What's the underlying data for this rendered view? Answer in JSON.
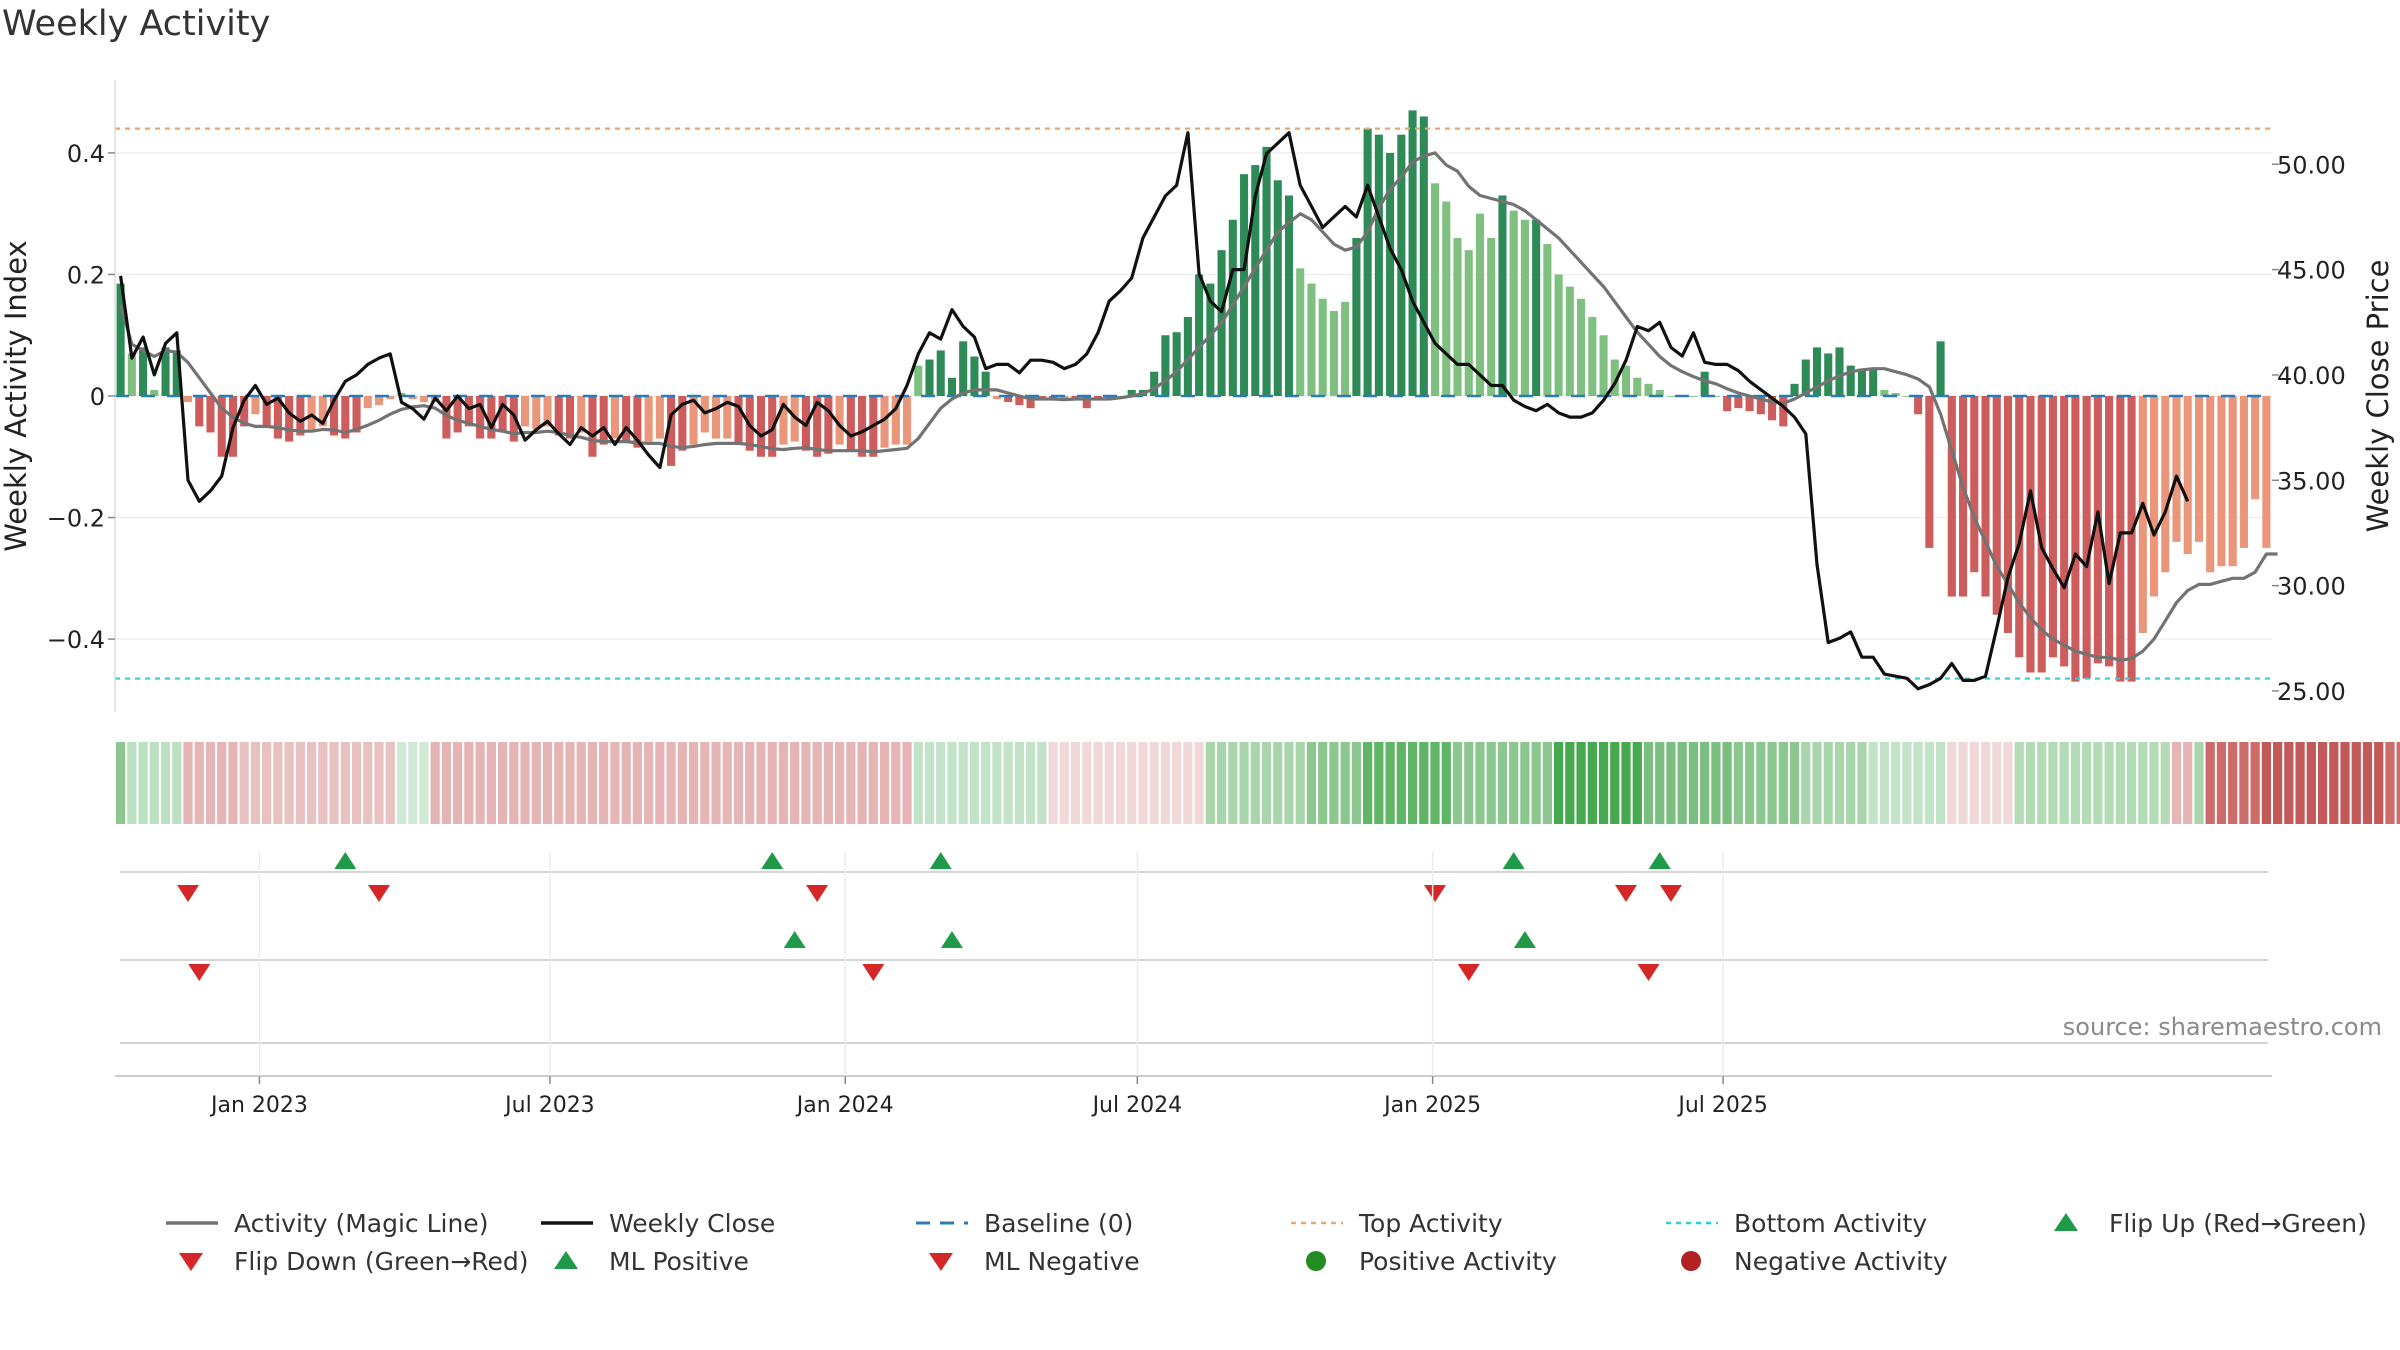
{
  "title": "Weekly Activity",
  "source": "source: sharemaestro.com",
  "colors": {
    "magic_line": "#737373",
    "close": "#111111",
    "baseline": "#2b7bb9",
    "top": "#e6a96b",
    "bottom": "#33ccd6",
    "pos_dark": "#2e8b57",
    "pos_light": "#7fbf7f",
    "neg_dark": "#cd5c5c",
    "neg_light": "#e9967a",
    "marker_up": "#1f9a48",
    "marker_down": "#d62728",
    "pos_dot": "#228b22",
    "neg_dot": "#b22222"
  },
  "chart_data": {
    "type": "bar",
    "start_date": "2022-10-03",
    "ylabel": "Weekly Activity Index",
    "y2label": "Weekly Close Price",
    "ylim": [
      -0.52,
      0.52
    ],
    "y2lim": [
      24.0,
      54.0
    ],
    "yticks": [
      -0.4,
      -0.2,
      0.0,
      0.2,
      0.4
    ],
    "ytick_labels": [
      "−0.4",
      "−0.2",
      "0",
      "0.2",
      "0.4"
    ],
    "y2ticks": [
      25.0,
      30.0,
      35.0,
      40.0,
      45.0,
      50.0
    ],
    "y2tick_labels": [
      "25.00",
      "30.00",
      "35.00",
      "40.00",
      "45.00",
      "50.00"
    ],
    "xtick_dates": [
      "2023-01-01",
      "2023-07-01",
      "2024-01-01",
      "2024-07-01",
      "2025-01-01",
      "2025-07-01"
    ],
    "xtick_labels": [
      "Jan 2023",
      "Jul 2023",
      "Jan 2024",
      "Jul 2024",
      "Jan 2025",
      "Jul 2025"
    ],
    "top_activity": 0.44,
    "bottom_activity": -0.465,
    "activity": [
      0.185,
      0.07,
      0.08,
      0.01,
      0.08,
      0.075,
      -0.01,
      -0.05,
      -0.06,
      -0.1,
      -0.1,
      -0.05,
      -0.03,
      -0.05,
      -0.07,
      -0.075,
      -0.065,
      -0.055,
      -0.05,
      -0.065,
      -0.07,
      -0.06,
      -0.02,
      -0.015,
      -0.005,
      0.005,
      -0.005,
      -0.01,
      -0.01,
      -0.07,
      -0.06,
      -0.05,
      -0.07,
      -0.07,
      -0.06,
      -0.075,
      -0.05,
      -0.055,
      -0.05,
      -0.065,
      -0.07,
      -0.06,
      -0.1,
      -0.08,
      -0.07,
      -0.075,
      -0.085,
      -0.075,
      -0.07,
      -0.115,
      -0.09,
      -0.08,
      -0.06,
      -0.07,
      -0.07,
      -0.08,
      -0.09,
      -0.1,
      -0.1,
      -0.08,
      -0.075,
      -0.09,
      -0.1,
      -0.095,
      -0.08,
      -0.09,
      -0.1,
      -0.1,
      -0.085,
      -0.08,
      -0.08,
      0.05,
      0.06,
      0.075,
      0.03,
      0.09,
      0.065,
      0.04,
      -0.005,
      -0.01,
      -0.015,
      -0.02,
      -0.005,
      -0.005,
      -0.005,
      -0.005,
      -0.02,
      -0.005,
      -0.005,
      0.0,
      0.01,
      0.01,
      0.04,
      0.1,
      0.105,
      0.13,
      0.2,
      0.185,
      0.24,
      0.29,
      0.365,
      0.38,
      0.41,
      0.355,
      0.33,
      0.21,
      0.185,
      0.16,
      0.14,
      0.155,
      0.26,
      0.44,
      0.43,
      0.4,
      0.43,
      0.47,
      0.46,
      0.35,
      0.32,
      0.26,
      0.24,
      0.3,
      0.26,
      0.33,
      0.305,
      0.29,
      0.29,
      0.25,
      0.2,
      0.18,
      0.16,
      0.13,
      0.1,
      0.06,
      0.05,
      0.03,
      0.02,
      0.01,
      0.0,
      0.0,
      0.0,
      0.04,
      0.0,
      -0.025,
      -0.02,
      -0.025,
      -0.03,
      -0.04,
      -0.05,
      0.02,
      0.06,
      0.08,
      0.07,
      0.08,
      0.05,
      0.045,
      0.045,
      0.01,
      0.005,
      0.0,
      -0.03,
      -0.25,
      0.09,
      -0.33,
      -0.33,
      -0.29,
      -0.33,
      -0.36,
      -0.39,
      -0.43,
      -0.455,
      -0.455,
      -0.43,
      -0.445,
      -0.47,
      -0.465,
      -0.44,
      -0.445,
      -0.47,
      -0.47,
      -0.39,
      -0.33,
      -0.29,
      -0.24,
      -0.26,
      -0.24,
      -0.29,
      -0.28,
      -0.28,
      -0.25,
      -0.17,
      -0.25
    ],
    "magic_line": [
      0.15,
      0.085,
      0.075,
      0.065,
      0.075,
      0.072,
      0.055,
      0.03,
      0.005,
      -0.02,
      -0.035,
      -0.045,
      -0.05,
      -0.05,
      -0.052,
      -0.056,
      -0.058,
      -0.058,
      -0.055,
      -0.056,
      -0.06,
      -0.055,
      -0.048,
      -0.04,
      -0.03,
      -0.022,
      -0.018,
      -0.016,
      -0.02,
      -0.032,
      -0.04,
      -0.045,
      -0.05,
      -0.055,
      -0.058,
      -0.062,
      -0.06,
      -0.06,
      -0.058,
      -0.06,
      -0.065,
      -0.068,
      -0.073,
      -0.075,
      -0.075,
      -0.075,
      -0.077,
      -0.078,
      -0.078,
      -0.083,
      -0.085,
      -0.083,
      -0.08,
      -0.078,
      -0.078,
      -0.078,
      -0.08,
      -0.083,
      -0.087,
      -0.088,
      -0.086,
      -0.085,
      -0.088,
      -0.09,
      -0.09,
      -0.09,
      -0.09,
      -0.092,
      -0.09,
      -0.088,
      -0.086,
      -0.07,
      -0.045,
      -0.02,
      -0.005,
      0.005,
      0.01,
      0.01,
      0.01,
      0.005,
      0.0,
      -0.005,
      -0.005,
      -0.005,
      -0.006,
      -0.005,
      -0.005,
      -0.005,
      -0.005,
      -0.003,
      0.0,
      0.004,
      0.012,
      0.025,
      0.04,
      0.06,
      0.08,
      0.1,
      0.12,
      0.15,
      0.18,
      0.21,
      0.24,
      0.27,
      0.285,
      0.3,
      0.29,
      0.27,
      0.25,
      0.24,
      0.245,
      0.27,
      0.31,
      0.34,
      0.36,
      0.385,
      0.395,
      0.4,
      0.38,
      0.37,
      0.345,
      0.33,
      0.325,
      0.32,
      0.315,
      0.305,
      0.29,
      0.275,
      0.26,
      0.24,
      0.22,
      0.2,
      0.18,
      0.155,
      0.13,
      0.105,
      0.085,
      0.065,
      0.05,
      0.04,
      0.032,
      0.025,
      0.02,
      0.012,
      0.005,
      0.0,
      -0.005,
      -0.01,
      -0.012,
      -0.005,
      0.005,
      0.015,
      0.025,
      0.033,
      0.04,
      0.043,
      0.045,
      0.045,
      0.04,
      0.035,
      0.028,
      0.015,
      -0.03,
      -0.09,
      -0.15,
      -0.2,
      -0.24,
      -0.28,
      -0.31,
      -0.34,
      -0.365,
      -0.385,
      -0.4,
      -0.41,
      -0.42,
      -0.425,
      -0.43,
      -0.43,
      -0.435,
      -0.432,
      -0.42,
      -0.4,
      -0.37,
      -0.34,
      -0.32,
      -0.31,
      -0.31,
      -0.305,
      -0.3,
      -0.3,
      -0.29,
      -0.26,
      -0.26
    ],
    "close": [
      44.7,
      40.8,
      41.8,
      40,
      41.5,
      42,
      35,
      34,
      34.5,
      35.2,
      37.5,
      38.8,
      39.5,
      38.6,
      38.9,
      38.2,
      37.8,
      38.1,
      37.7,
      38.8,
      39.7,
      40,
      40.5,
      40.8,
      41,
      38.7,
      38.4,
      37.9,
      38.9,
      38.3,
      39,
      38.4,
      38.6,
      37.5,
      38.6,
      38.1,
      36.9,
      37.4,
      37.8,
      37.2,
      36.7,
      37.5,
      37.1,
      37.5,
      36.7,
      37.5,
      36.9,
      36.2,
      35.6,
      38.1,
      38.6,
      38.8,
      38.2,
      38.4,
      38.7,
      38.5,
      37.6,
      37.1,
      37.4,
      38.6,
      38,
      37.6,
      38.7,
      38.3,
      37.6,
      37.1,
      37.3,
      37.6,
      37.9,
      38.4,
      39.5,
      41,
      42,
      41.7,
      43.1,
      42.3,
      41.8,
      40.3,
      40.5,
      40.5,
      40.1,
      40.7,
      40.7,
      40.6,
      40.3,
      40.5,
      41,
      42,
      43.5,
      44,
      44.6,
      46.5,
      47.5,
      48.5,
      49,
      51.5,
      44.8,
      43.5,
      43,
      45,
      45,
      48.5,
      50.5,
      51,
      51.5,
      49,
      48,
      47,
      47.5,
      48,
      47.5,
      49,
      47.5,
      46,
      45,
      43.5,
      42.5,
      41.5,
      41,
      40.5,
      40.5,
      40,
      39.5,
      39.5,
      38.8,
      38.5,
      38.3,
      38.6,
      38.2,
      38,
      38,
      38.2,
      38.8,
      39.6,
      40.7,
      42.3,
      42.1,
      42.5,
      41.3,
      40.9,
      42,
      40.6,
      40.5,
      40.5,
      40.2,
      39.7,
      39.3,
      38.9,
      38.5,
      38,
      37.2,
      31,
      27.3,
      27.5,
      27.8,
      26.6,
      26.6,
      25.8,
      25.7,
      25.6,
      25.1,
      25.3,
      25.6,
      26.3,
      25.5,
      25.5,
      25.7,
      28,
      30.4,
      32,
      34.5,
      31.8,
      30.8,
      29.9,
      31.5,
      30.9,
      33.5,
      30.1,
      32.5,
      32.5,
      33.9,
      32.4,
      33.5,
      35.2,
      34
    ]
  },
  "trend_strip": {
    "colors": [
      "#8cc78f",
      "#bde0c2",
      "#bde0c2",
      "#bde0c2",
      "#bde0c2",
      "#bde0c2",
      "#e5b4b4",
      "#e5b4b4",
      "#e5b4b4",
      "#e5b4b4",
      "#e5b4b4",
      "#e8c1c1",
      "#e8c1c1",
      "#e8c1c1",
      "#e8c1c1",
      "#e8c1c1",
      "#e8c1c1",
      "#e8c1c1",
      "#e8c1c1",
      "#e8c1c1",
      "#e8c1c1",
      "#e8c1c1",
      "#e8c1c1",
      "#e8c1c1",
      "#e8c1c1",
      "#cfe9d4",
      "#cfe9d4",
      "#cfe9d4",
      "#e5b4b4",
      "#e5b4b4",
      "#e5b4b4",
      "#e5b4b4",
      "#e5b4b4",
      "#e5b4b4",
      "#e5b4b4",
      "#e5b4b4",
      "#e5b4b4",
      "#e5b4b4",
      "#e5b4b4",
      "#e5b4b4",
      "#e5b4b4",
      "#e5b4b4",
      "#e5b4b4",
      "#e5b4b4",
      "#e5b4b4",
      "#e5b4b4",
      "#e5b4b4",
      "#e5b4b4",
      "#e5b4b4",
      "#e5b4b4",
      "#e5b4b4",
      "#e5b4b4",
      "#e5b4b4",
      "#e5b4b4",
      "#e5b4b4",
      "#e5b4b4",
      "#e5b4b4",
      "#e5b4b4",
      "#e5b4b4",
      "#e5b4b4",
      "#e5b4b4",
      "#e5b4b4",
      "#e5b4b4",
      "#e5b4b4",
      "#e5b4b4",
      "#e5b4b4",
      "#e5b4b4",
      "#e5b4b4",
      "#e5b4b4",
      "#e5b4b4",
      "#e5b4b4",
      "#c2e3c7",
      "#c2e3c7",
      "#c2e3c7",
      "#c2e3c7",
      "#c2e3c7",
      "#c2e3c7",
      "#c2e3c7",
      "#c2e3c7",
      "#c2e3c7",
      "#c2e3c7",
      "#c2e3c7",
      "#c2e3c7",
      "#f0d8d8",
      "#f0d8d8",
      "#f0d8d8",
      "#f0d8d8",
      "#f0d8d8",
      "#f0d8d8",
      "#f0d8d8",
      "#f0d8d8",
      "#f0d8d8",
      "#f0d8d8",
      "#f0d8d8",
      "#f0d8d8",
      "#f0d8d8",
      "#f0d8d8",
      "#a8d5ac",
      "#a8d5ac",
      "#a8d5ac",
      "#a8d5ac",
      "#a8d5ac",
      "#a8d5ac",
      "#a8d5ac",
      "#a8d5ac",
      "#a8d5ac",
      "#8cc78f",
      "#8cc78f",
      "#8cc78f",
      "#8cc78f",
      "#8cc78f",
      "#61b566",
      "#61b566",
      "#61b566",
      "#61b566",
      "#61b566",
      "#61b566",
      "#61b566",
      "#61b566",
      "#8cc78f",
      "#8cc78f",
      "#8cc78f",
      "#8cc78f",
      "#8cc78f",
      "#8cc78f",
      "#8cc78f",
      "#8cc78f",
      "#8cc78f",
      "#46a84f",
      "#46a84f",
      "#46a84f",
      "#46a84f",
      "#46a84f",
      "#46a84f",
      "#46a84f",
      "#46a84f",
      "#7bbf80",
      "#7bbf80",
      "#7bbf80",
      "#7bbf80",
      "#7bbf80",
      "#7bbf80",
      "#7bbf80",
      "#7bbf80",
      "#8cc78f",
      "#8cc78f",
      "#8cc78f",
      "#8cc78f",
      "#8cc78f",
      "#8cc78f",
      "#a8d5ac",
      "#a8d5ac",
      "#a8d5ac",
      "#a8d5ac",
      "#a8d5ac",
      "#a8d5ac",
      "#c2e3c7",
      "#c2e3c7",
      "#c2e3c7",
      "#c2e3c7",
      "#c2e3c7",
      "#c2e3c7",
      "#c2e3c7",
      "#f0d8d8",
      "#f0d8d8",
      "#f0d8d8",
      "#f0d8d8",
      "#f0d8d8",
      "#f0d8d8",
      "#b2dbb6",
      "#b2dbb6",
      "#b2dbb6",
      "#b2dbb6",
      "#b2dbb6",
      "#b2dbb6",
      "#b2dbb6",
      "#b2dbb6",
      "#b2dbb6",
      "#b2dbb6",
      "#b2dbb6",
      "#b2dbb6",
      "#b2dbb6",
      "#b2dbb6",
      "#e5b4b4",
      "#e5b4b4",
      "#a8d5ac",
      "#cd6a6a",
      "#cd6a6a",
      "#cd6a6a",
      "#cd6a6a",
      "#cd6a6a",
      "#c25a5a",
      "#c25a5a",
      "#c25a5a",
      "#c25a5a",
      "#c25a5a",
      "#c25a5a",
      "#c25a5a",
      "#c25a5a",
      "#c25a5a",
      "#c25a5a",
      "#c25a5a",
      "#cd6a6a",
      "#cd6a6a",
      "#cd6a6a",
      "#cd6a6a",
      "#d48585",
      "#d48585",
      "#d48585",
      "#d48585",
      "#d48585",
      "#d48585",
      "#d48585",
      "#dca39a"
    ]
  },
  "marker_rows": {
    "flips": {
      "up_dates": [
        "2023-02-20",
        "2023-11-13",
        "2024-02-26",
        "2025-02-17",
        "2025-05-19"
      ],
      "down_dates": [
        "2022-11-14",
        "2023-03-13",
        "2023-12-11",
        "2024-12-30",
        "2025-04-28",
        "2025-05-26"
      ]
    },
    "ml": {
      "up_dates": [
        "2023-11-27",
        "2024-03-04",
        "2025-02-24"
      ],
      "down_dates": [
        "2022-11-21",
        "2024-01-15",
        "2025-01-20",
        "2025-05-12"
      ]
    }
  },
  "legend": {
    "magic_line": "Activity (Magic Line)",
    "close": "Weekly Close",
    "baseline": "Baseline (0)",
    "top": "Top Activity",
    "bottom": "Bottom Activity",
    "flip_up": "Flip Up (Red→Green)",
    "flip_down": "Flip Down (Green→Red)",
    "ml_positive": "ML Positive",
    "ml_negative": "ML Negative",
    "positive_activity": "Positive Activity",
    "negative_activity": "Negative Activity"
  }
}
